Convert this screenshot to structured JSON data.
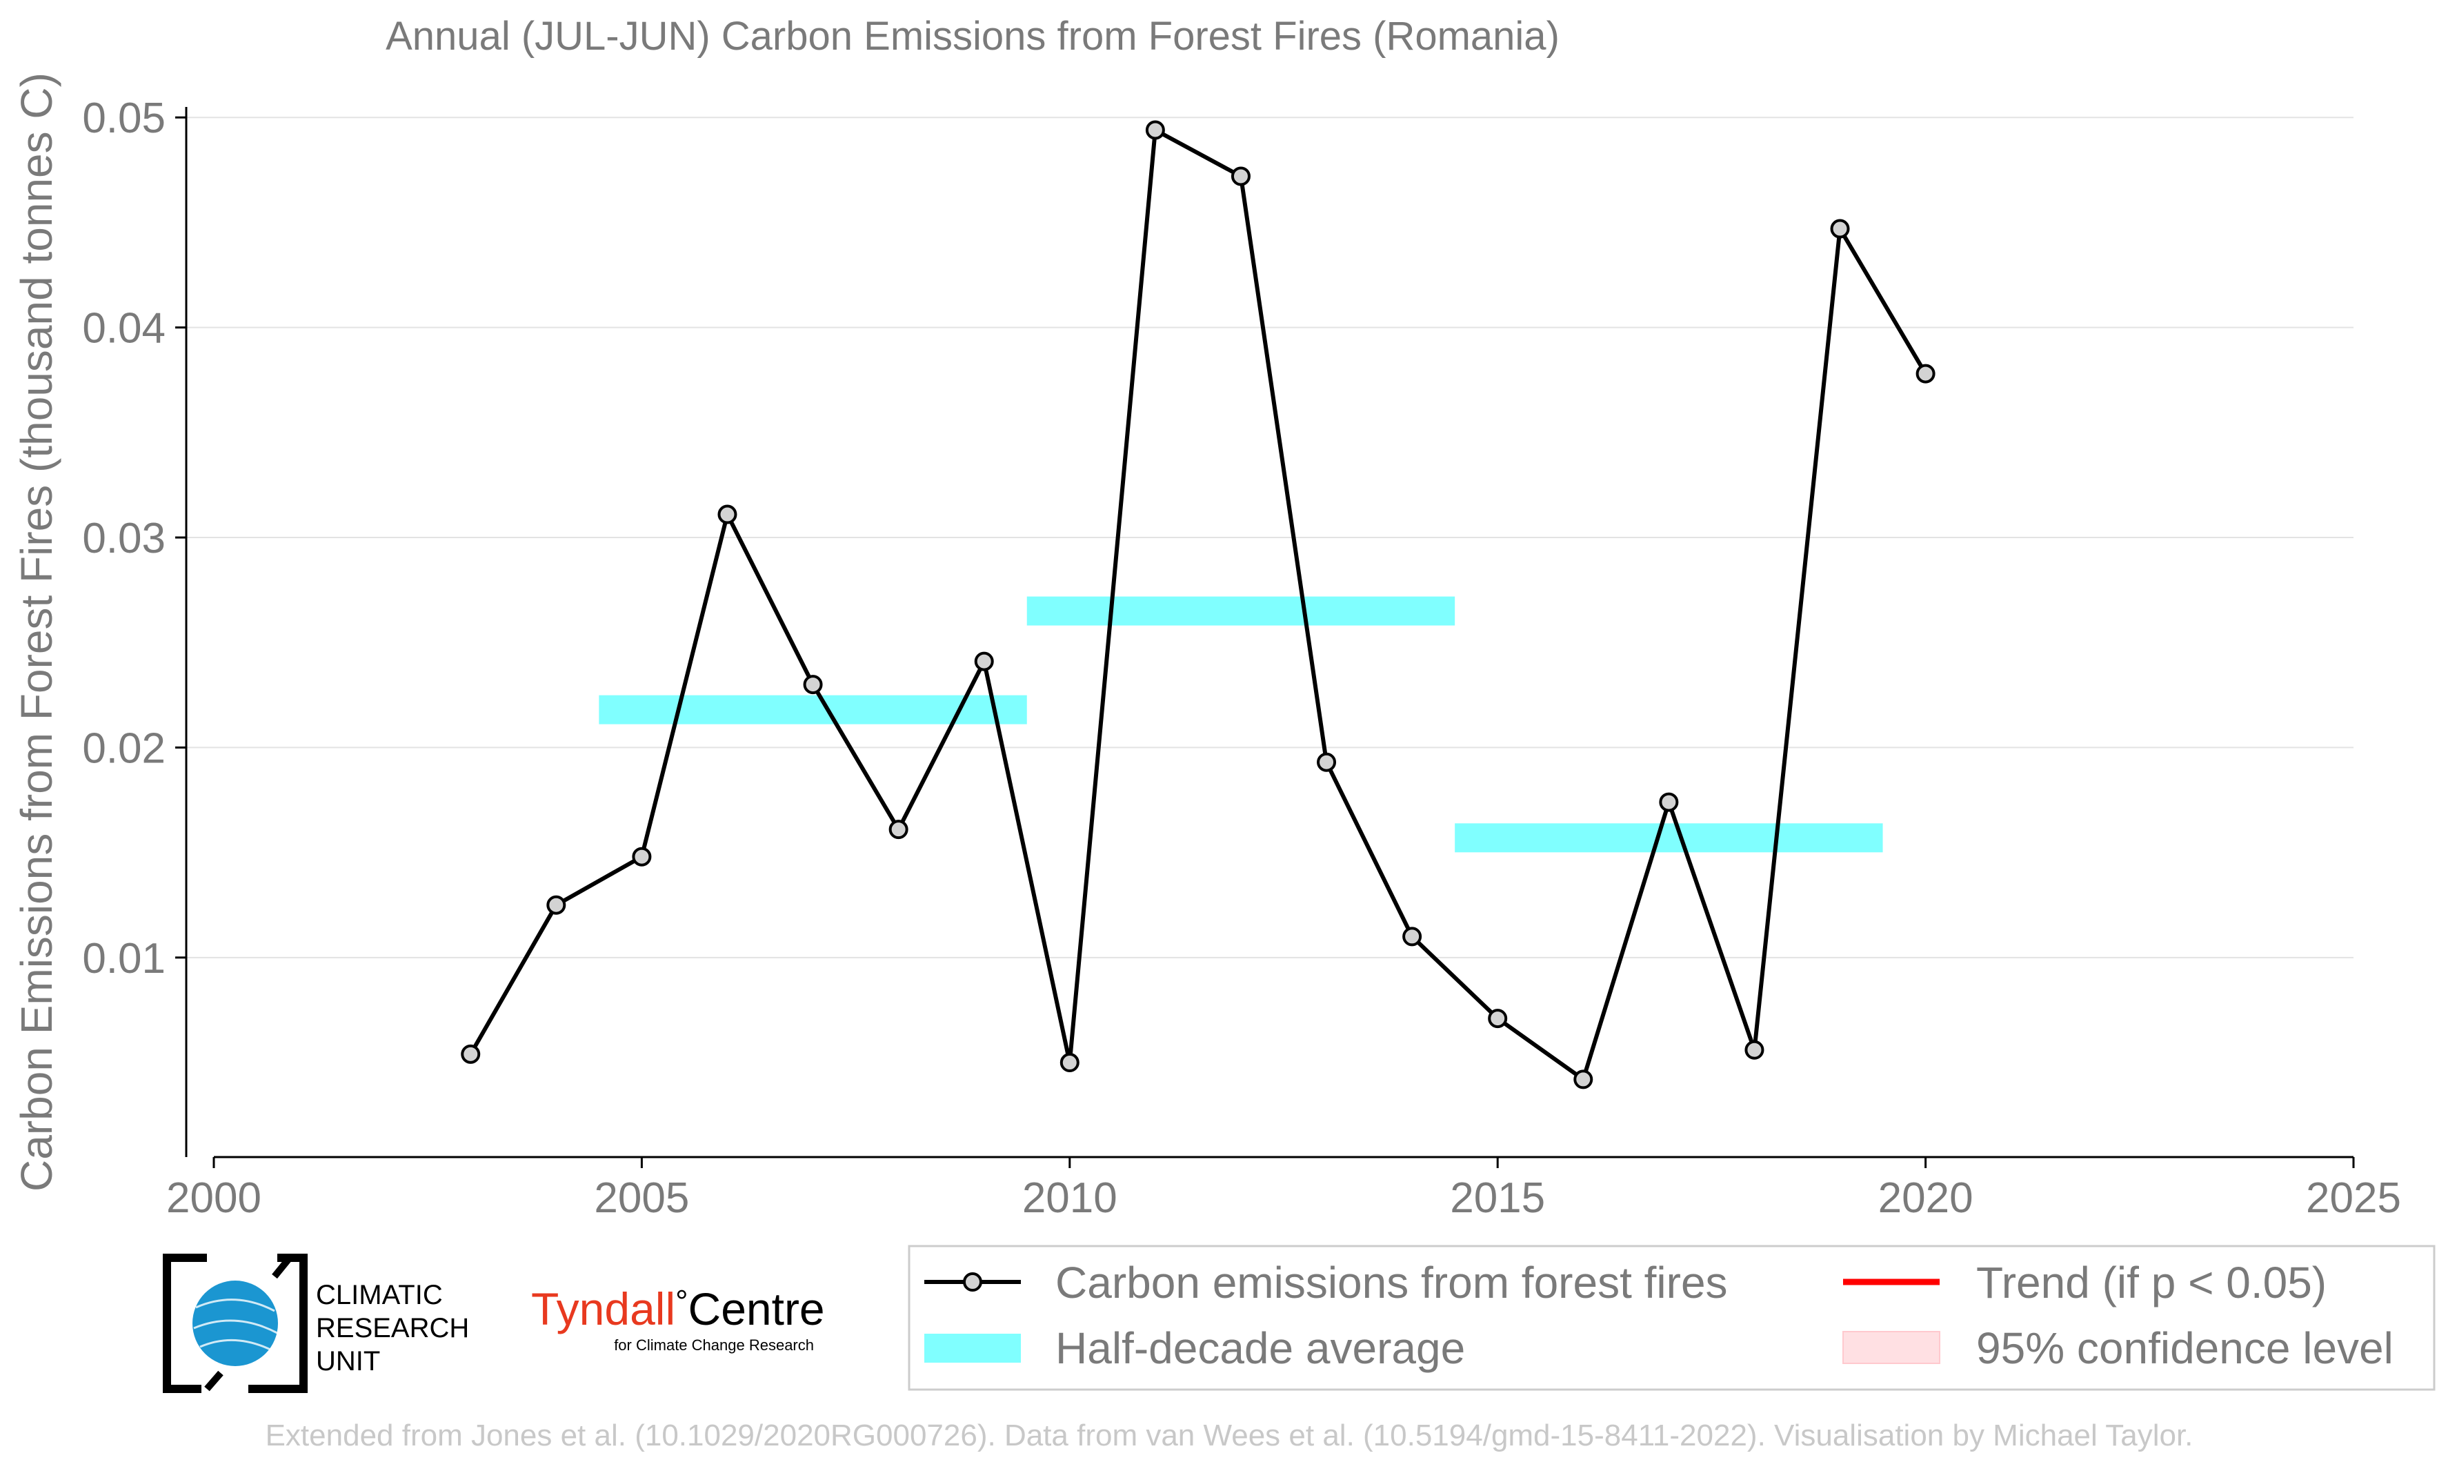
{
  "colors": {
    "line": "#000000",
    "marker_fill": "#d3d3d3",
    "half_decade": "#80ffff",
    "trend": "#ff0000",
    "confidence": "#ffe0e3",
    "text": "#7a7a7a",
    "grid": "#e3e3e3",
    "footer": "#c8c8c8",
    "tyndall_red": "#e8391f",
    "cru_blue": "#1b96d1"
  },
  "footer": {
    "credit": "Extended from Jones et al. (10.1029/2020RG000726). Data from van Wees et al. (10.5194/gmd-15-8411-2022). Visualisation by Michael Taylor."
  },
  "logos": {
    "cru": {
      "line1": "CLIMATIC",
      "line2": "RESEARCH",
      "line3": "UNIT",
      "icon": "globe-icon"
    },
    "tyndall": {
      "name_a": "Tyndall",
      "degree": "°",
      "name_b": "Centre",
      "subtitle": "for Climate Change Research"
    }
  },
  "chart_data": {
    "type": "line",
    "title": "Annual (JUL-JUN) Carbon Emissions from Forest Fires (Romania)",
    "xlabel": "",
    "ylabel": "Carbon Emissions from Forest Fires (thousand tonnes C)",
    "xlim": [
      2000,
      2025
    ],
    "ylim": [
      0.0005,
      0.0505
    ],
    "xticks": [
      2000,
      2005,
      2010,
      2015,
      2020,
      2025
    ],
    "xtick_labels": [
      "2000",
      "2005",
      "2010",
      "2015",
      "2020",
      "2025"
    ],
    "yticks": [
      0.01,
      0.02,
      0.03,
      0.04,
      0.05
    ],
    "ytick_labels": [
      "0.01",
      "0.02",
      "0.03",
      "0.04",
      "0.05"
    ],
    "grid": "horizontal",
    "legend_position": "bottom-right",
    "series": [
      {
        "name": "Carbon emissions from forest fires",
        "x": [
          2003,
          2004,
          2005,
          2006,
          2007,
          2008,
          2009,
          2010,
          2011,
          2012,
          2013,
          2014,
          2015,
          2016,
          2017,
          2018,
          2019,
          2020
        ],
        "values": [
          0.0054,
          0.0125,
          0.0148,
          0.0311,
          0.023,
          0.0161,
          0.0241,
          0.005,
          0.0494,
          0.0472,
          0.0193,
          0.011,
          0.0071,
          0.0042,
          0.0174,
          0.0056,
          0.0447,
          0.0378
        ]
      }
    ],
    "half_decade_averages": [
      {
        "x_start": 2004.5,
        "x_end": 2009.5,
        "value": 0.0218
      },
      {
        "x_start": 2009.5,
        "x_end": 2014.5,
        "value": 0.0265
      },
      {
        "x_start": 2014.5,
        "x_end": 2019.5,
        "value": 0.0157
      }
    ],
    "legend": [
      {
        "key": "series",
        "label": "Carbon emissions from forest fires"
      },
      {
        "key": "trend",
        "label": "Trend (if p < 0.05)"
      },
      {
        "key": "half_decade",
        "label": "Half-decade average"
      },
      {
        "key": "confidence",
        "label": "95% confidence level"
      }
    ]
  }
}
